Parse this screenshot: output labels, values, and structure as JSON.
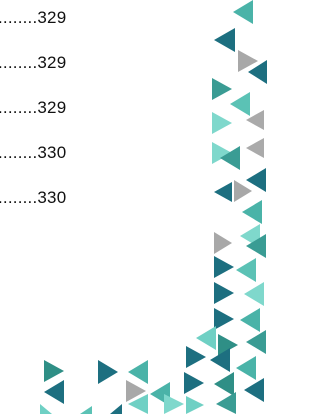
{
  "toc": {
    "entries": [
      {
        "leader": "........",
        "page": "329"
      },
      {
        "leader": "........",
        "page": "329"
      },
      {
        "leader": "........",
        "page": "329"
      },
      {
        "leader": "........",
        "page": "330"
      },
      {
        "leader": "........",
        "page": "330"
      }
    ]
  }
}
